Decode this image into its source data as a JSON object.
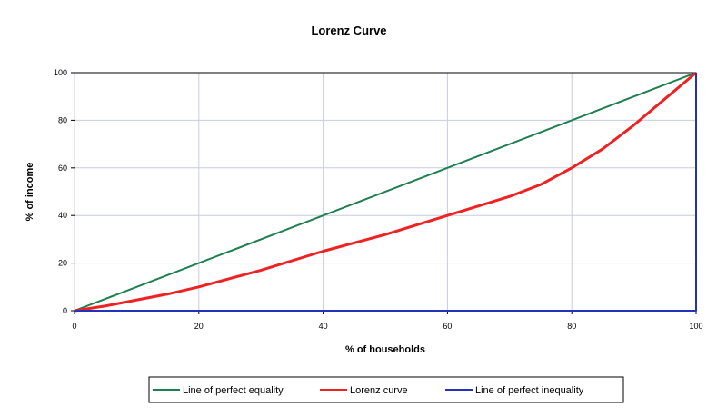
{
  "chart_data": {
    "type": "line",
    "title": "Lorenz Curve",
    "xlabel": "% of households",
    "ylabel": "% of income",
    "xlim": [
      0,
      100
    ],
    "ylim": [
      0,
      100
    ],
    "xticks": [
      "0",
      "20",
      "40",
      "60",
      "80",
      "100"
    ],
    "yticks": [
      "0",
      "20",
      "40",
      "60",
      "80",
      "100"
    ],
    "grid": true,
    "legend_position": "bottom",
    "series": [
      {
        "name": "Line of perfect equality",
        "color": "#1f7f4f",
        "x": [
          0,
          100
        ],
        "y": [
          0,
          100
        ]
      },
      {
        "name": "Lorenz curve",
        "color": "#ee2222",
        "x": [
          0,
          5,
          15,
          20,
          30,
          40,
          50,
          60,
          70,
          75,
          80,
          85,
          90,
          95,
          100
        ],
        "y": [
          0,
          2,
          7,
          10,
          17,
          25,
          32,
          40,
          48,
          53,
          60,
          68,
          78,
          89,
          100
        ]
      },
      {
        "name": "Line of perfect inequality",
        "color": "#2233bb",
        "x": [
          0,
          100,
          100
        ],
        "y": [
          0,
          0,
          100
        ]
      }
    ]
  }
}
